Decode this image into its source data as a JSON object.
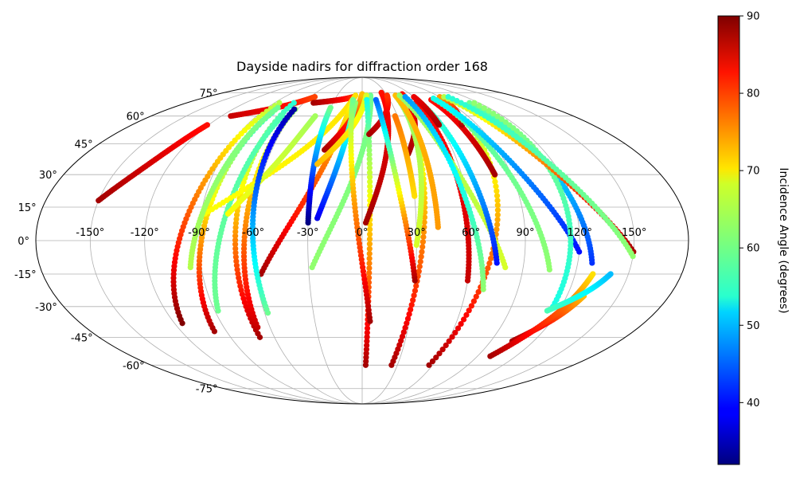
{
  "chart_data": {
    "type": "scatter",
    "projection": "mollweide",
    "title": "Dayside nadirs for diffraction order 168",
    "x_tick_labels": [
      "-150°",
      "-120°",
      "-90°",
      "-60°",
      "-30°",
      "0°",
      "30°",
      "60°",
      "90°",
      "120°",
      "150°"
    ],
    "x_ticks": [
      -150,
      -120,
      -90,
      -60,
      -30,
      0,
      30,
      60,
      90,
      120,
      150
    ],
    "y_tick_labels": [
      "-75°",
      "-60°",
      "-45°",
      "-30°",
      "-15°",
      "0°",
      "15°",
      "30°",
      "45°",
      "60°",
      "75°"
    ],
    "y_ticks": [
      -75,
      -60,
      -45,
      -30,
      -15,
      0,
      15,
      30,
      45,
      60,
      75
    ],
    "grid": true,
    "colorbar": {
      "label": "Incidence Angle (degrees)",
      "colormap": "jet",
      "range": [
        32,
        90
      ],
      "tick_labels": [
        "40",
        "50",
        "60",
        "70",
        "80",
        "90"
      ],
      "ticks": [
        40,
        50,
        60,
        70,
        80,
        90
      ]
    },
    "tracks": [
      {
        "start": [
          -150,
          18
        ],
        "end": [
          -121,
          55
        ],
        "inc_start": 88,
        "inc_end": 82
      },
      {
        "start": [
          -112,
          60
        ],
        "end": [
          -55,
          72
        ],
        "inc_start": 86,
        "inc_end": 79
      },
      {
        "start": [
          -50,
          68
        ],
        "end": [
          -10,
          72
        ],
        "inc_start": 88,
        "inc_end": 80
      },
      {
        "start": [
          -115,
          -38
        ],
        "end": [
          -85,
          68
        ],
        "inc_start": 90,
        "inc_end": 64
      },
      {
        "start": [
          -98,
          -42
        ],
        "end": [
          -80,
          62
        ],
        "inc_start": 88,
        "inc_end": 54
      },
      {
        "start": [
          -70,
          -45
        ],
        "end": [
          -70,
          68
        ],
        "inc_start": 88,
        "inc_end": 56
      },
      {
        "start": [
          -68,
          -40
        ],
        "end": [
          -62,
          64
        ],
        "inc_start": 86,
        "inc_end": 62
      },
      {
        "start": [
          -88,
          -32
        ],
        "end": [
          -68,
          60
        ],
        "inc_start": 60,
        "inc_end": 58
      },
      {
        "start": [
          -88,
          12
        ],
        "end": [
          -8,
          73
        ],
        "inc_start": 68,
        "inc_end": 70
      },
      {
        "start": [
          -75,
          12
        ],
        "end": [
          -40,
          60
        ],
        "inc_start": 68,
        "inc_end": 63
      },
      {
        "start": [
          -96,
          -12
        ],
        "end": [
          -80,
          65
        ],
        "inc_start": 64,
        "inc_end": 60
      },
      {
        "start": [
          -57,
          -15
        ],
        "end": [
          -10,
          68
        ],
        "inc_start": 88,
        "inc_end": 68
      },
      {
        "start": [
          -58,
          -33
        ],
        "end": [
          -63,
          64
        ],
        "inc_start": 60,
        "inc_end": 34
      },
      {
        "start": [
          -25,
          42
        ],
        "end": [
          0,
          74
        ],
        "inc_start": 88,
        "inc_end": 72
      },
      {
        "start": [
          -28,
          -12
        ],
        "end": [
          10,
          73
        ],
        "inc_start": 62,
        "inc_end": 60
      },
      {
        "start": [
          -30,
          8
        ],
        "end": [
          -30,
          65
        ],
        "inc_start": 32,
        "inc_end": 60
      },
      {
        "start": [
          -25,
          10
        ],
        "end": [
          -7,
          68
        ],
        "inc_start": 38,
        "inc_end": 62
      },
      {
        "start": [
          -28,
          35
        ],
        "end": [
          5,
          73
        ],
        "inc_start": 72,
        "inc_end": 66
      },
      {
        "start": [
          3,
          -60
        ],
        "end": [
          5,
          70
        ],
        "inc_start": 88,
        "inc_end": 55
      },
      {
        "start": [
          5,
          -37
        ],
        "end": [
          -10,
          70
        ],
        "inc_start": 88,
        "inc_end": 60
      },
      {
        "start": [
          2,
          8
        ],
        "end": [
          25,
          75
        ],
        "inc_start": 88,
        "inc_end": 82
      },
      {
        "start": [
          5,
          50
        ],
        "end": [
          30,
          73
        ],
        "inc_start": 88,
        "inc_end": 80
      },
      {
        "start": [
          25,
          -60
        ],
        "end": [
          40,
          72
        ],
        "inc_start": 88,
        "inc_end": 60
      },
      {
        "start": [
          30,
          -18
        ],
        "end": [
          15,
          70
        ],
        "inc_start": 88,
        "inc_end": 45
      },
      {
        "start": [
          30,
          40
        ],
        "end": [
          50,
          74
        ],
        "inc_start": 88,
        "inc_end": 82
      },
      {
        "start": [
          30,
          20
        ],
        "end": [
          28,
          60
        ],
        "inc_start": 70,
        "inc_end": 76
      },
      {
        "start": [
          30,
          -2
        ],
        "end": [
          40,
          72
        ],
        "inc_start": 66,
        "inc_end": 62
      },
      {
        "start": [
          42,
          6
        ],
        "end": [
          40,
          73
        ],
        "inc_start": 74,
        "inc_end": 72
      },
      {
        "start": [
          57,
          -60
        ],
        "end": [
          85,
          70
        ],
        "inc_start": 88,
        "inc_end": 60
      },
      {
        "start": [
          60,
          -18
        ],
        "end": [
          55,
          68
        ],
        "inc_start": 86,
        "inc_end": 82
      },
      {
        "start": [
          80,
          -12
        ],
        "end": [
          45,
          73
        ],
        "inc_start": 66,
        "inc_end": 62
      },
      {
        "start": [
          70,
          -22
        ],
        "end": [
          50,
          72
        ],
        "inc_start": 62,
        "inc_end": 48
      },
      {
        "start": [
          75,
          -10
        ],
        "end": [
          60,
          70
        ],
        "inc_start": 40,
        "inc_end": 60
      },
      {
        "start": [
          60,
          55
        ],
        "end": [
          60,
          72
        ],
        "inc_start": 88,
        "inc_end": 84
      },
      {
        "start": [
          80,
          30
        ],
        "end": [
          75,
          70
        ],
        "inc_start": 88,
        "inc_end": 82
      },
      {
        "start": [
          78,
          55
        ],
        "end": [
          90,
          72
        ],
        "inc_start": 88,
        "inc_end": 74
      },
      {
        "start": [
          105,
          -13
        ],
        "end": [
          80,
          70
        ],
        "inc_start": 62,
        "inc_end": 58
      },
      {
        "start": [
          120,
          -5
        ],
        "end": [
          80,
          71
        ],
        "inc_start": 40,
        "inc_end": 55
      },
      {
        "start": [
          128,
          -10
        ],
        "end": [
          110,
          68
        ],
        "inc_start": 42,
        "inc_end": 60
      },
      {
        "start": [
          115,
          -30
        ],
        "end": [
          115,
          68
        ],
        "inc_start": 55,
        "inc_end": 62
      },
      {
        "start": [
          150,
          -5
        ],
        "end": [
          95,
          72
        ],
        "inc_start": 88,
        "inc_end": 64
      },
      {
        "start": [
          150,
          -7
        ],
        "end": [
          100,
          72
        ],
        "inc_start": 62,
        "inc_end": 56
      },
      {
        "start": [
          105,
          -47
        ],
        "end": [
          130,
          -25
        ],
        "inc_start": 88,
        "inc_end": 72
      },
      {
        "start": [
          100,
          -55
        ],
        "end": [
          130,
          -15
        ],
        "inc_start": 88,
        "inc_end": 70
      },
      {
        "start": [
          113,
          -32
        ],
        "end": [
          140,
          -15
        ],
        "inc_start": 58,
        "inc_end": 50
      }
    ]
  }
}
